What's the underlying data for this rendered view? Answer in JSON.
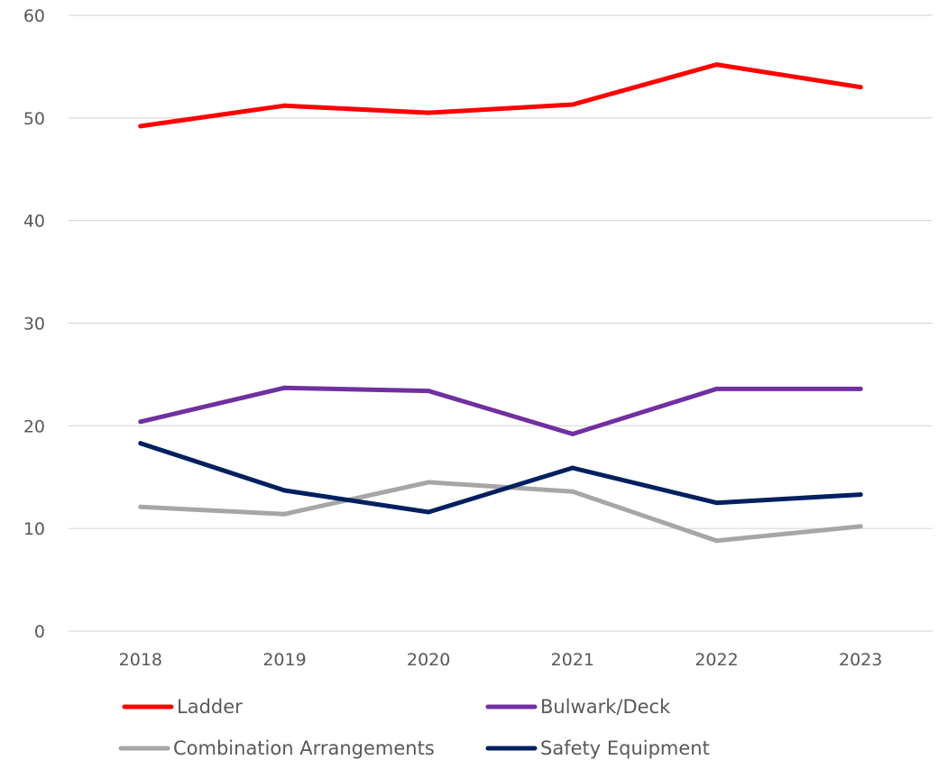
{
  "chart_data": {
    "type": "line",
    "title": "",
    "xlabel": "",
    "ylabel": "",
    "categories": [
      "2018",
      "2019",
      "2020",
      "2021",
      "2022",
      "2023"
    ],
    "ylim": [
      0,
      60
    ],
    "yticks": [
      0,
      10,
      20,
      30,
      40,
      50,
      60
    ],
    "grid": true,
    "legend_position": "bottom",
    "series": [
      {
        "name": "Ladder",
        "color": "#ff0000",
        "values": [
          49.2,
          51.2,
          50.5,
          51.3,
          55.2,
          53.0
        ]
      },
      {
        "name": "Bulwark/Deck",
        "color": "#7030a0",
        "values": [
          20.4,
          23.7,
          23.4,
          19.2,
          23.6,
          23.6
        ]
      },
      {
        "name": "Combination Arrangements",
        "color": "#a6a6a6",
        "values": [
          12.1,
          11.4,
          14.5,
          13.6,
          8.8,
          10.2
        ]
      },
      {
        "name": "Safety Equipment",
        "color": "#002060",
        "values": [
          18.3,
          13.7,
          11.6,
          15.9,
          12.5,
          13.3
        ]
      }
    ]
  }
}
